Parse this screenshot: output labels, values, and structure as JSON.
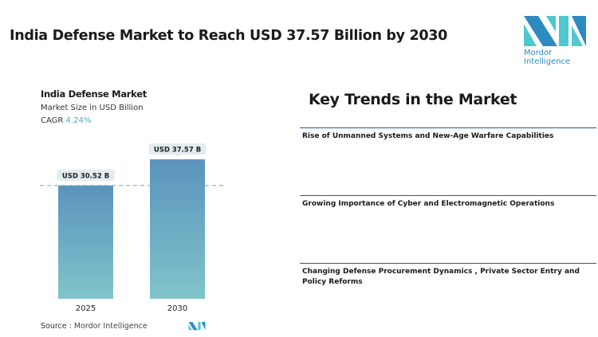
{
  "header": {
    "title": "India Defense Market to Reach USD 37.57 Billion by 2030"
  },
  "logo": {
    "text": "Mordor Intelligence",
    "colors": [
      "#2e8bc0",
      "#4fc9cf"
    ]
  },
  "chart_data": {
    "type": "bar",
    "title": "India Defense Market",
    "subtitle": "Market Size in USD Billion",
    "cagr_label": "CAGR",
    "cagr_value": "4.24%",
    "categories": [
      "2025",
      "2030"
    ],
    "values": [
      30.52,
      37.57
    ],
    "data_labels": [
      "USD 30.52 B",
      "USD 37.57 B"
    ],
    "ylim": [
      0,
      37.57
    ],
    "reference_line": 30.52,
    "colors": {
      "bar_top": "#5b93bd",
      "bar_bottom": "#80c4ca",
      "label_bg": "#e3ecef",
      "accent": "#5aa7c7"
    }
  },
  "trends": {
    "title": "Key Trends in the Market",
    "items": [
      "Rise of Unmanned Systems and New-Age Warfare Capabilities",
      "Growing Importance of Cyber and Electromagnetic Operations",
      "Changing Defense Procurement Dynamics , Private Sector Entry and Policy Reforms"
    ]
  },
  "footer": {
    "source_label": "Source :",
    "source_value": "Mordor Intelligence"
  }
}
